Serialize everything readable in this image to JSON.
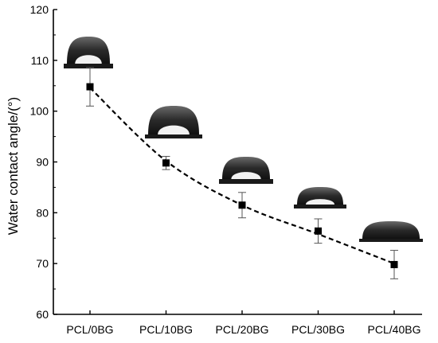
{
  "chart_data": {
    "type": "scatter",
    "title": "",
    "xlabel": "",
    "ylabel": "Water contact angle/(°)",
    "ylim": [
      60,
      120
    ],
    "yticks": [
      60,
      70,
      80,
      90,
      100,
      110,
      120
    ],
    "grid": false,
    "legend": "none",
    "categories": [
      "PCL/0BG",
      "PCL/10BG",
      "PCL/20BG",
      "PCL/30BG",
      "PCL/40BG"
    ],
    "series": [
      {
        "values": [
          104.8,
          89.8,
          81.5,
          76.4,
          69.8
        ],
        "error": [
          3.8,
          1.3,
          2.5,
          2.4,
          2.8
        ],
        "marker": "square",
        "color": "#000000"
      }
    ],
    "trendline": {
      "style": "dashed",
      "color": "#000000",
      "values": [
        104.6,
        90.2,
        81.5,
        75.8,
        70.0
      ]
    },
    "insets": [
      {
        "category": "PCL/0BG",
        "icon": "water-droplet-image"
      },
      {
        "category": "PCL/10BG",
        "icon": "water-droplet-image"
      },
      {
        "category": "PCL/20BG",
        "icon": "water-droplet-image"
      },
      {
        "category": "PCL/30BG",
        "icon": "water-droplet-image"
      },
      {
        "category": "PCL/40BG",
        "icon": "water-droplet-image"
      }
    ]
  }
}
